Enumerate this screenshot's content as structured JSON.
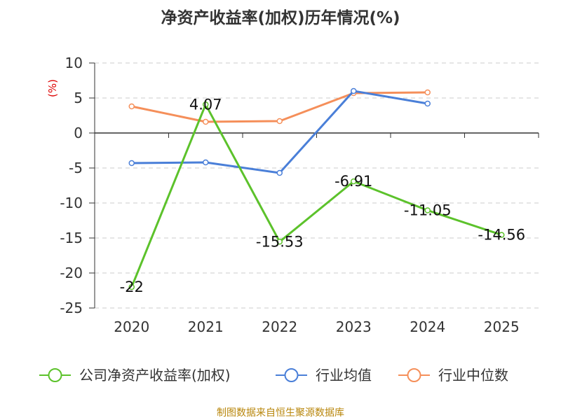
{
  "chart_data": {
    "type": "line",
    "title": "净资产收益率(加权)历年情况(%)",
    "ylabel": "(%)",
    "categories": [
      "2020",
      "2021",
      "2022",
      "2023",
      "2024",
      "2025"
    ],
    "ylim": [
      -25,
      10
    ],
    "yticks": [
      10,
      5,
      0,
      -5,
      -10,
      -15,
      -20,
      -25
    ],
    "grid": true,
    "legend_position": "bottom",
    "series": [
      {
        "name": "公司净资产收益率(加权)",
        "color": "#5cc22b",
        "values": [
          -22,
          4.07,
          -15.53,
          -6.91,
          -11.05,
          -14.56
        ],
        "labels": [
          "-22",
          "4.07",
          "-15.53",
          "-6.91",
          "-11.05",
          "-14.56"
        ]
      },
      {
        "name": "行业均值",
        "color": "#4a7fd8",
        "values": [
          -4.3,
          -4.2,
          -5.7,
          6.0,
          4.2,
          null
        ]
      },
      {
        "name": "行业中位数",
        "color": "#f58f5a",
        "values": [
          3.8,
          1.6,
          1.7,
          5.7,
          5.8,
          null
        ]
      }
    ]
  },
  "footer": {
    "source": "制图数据来自恒生聚源数据库"
  }
}
